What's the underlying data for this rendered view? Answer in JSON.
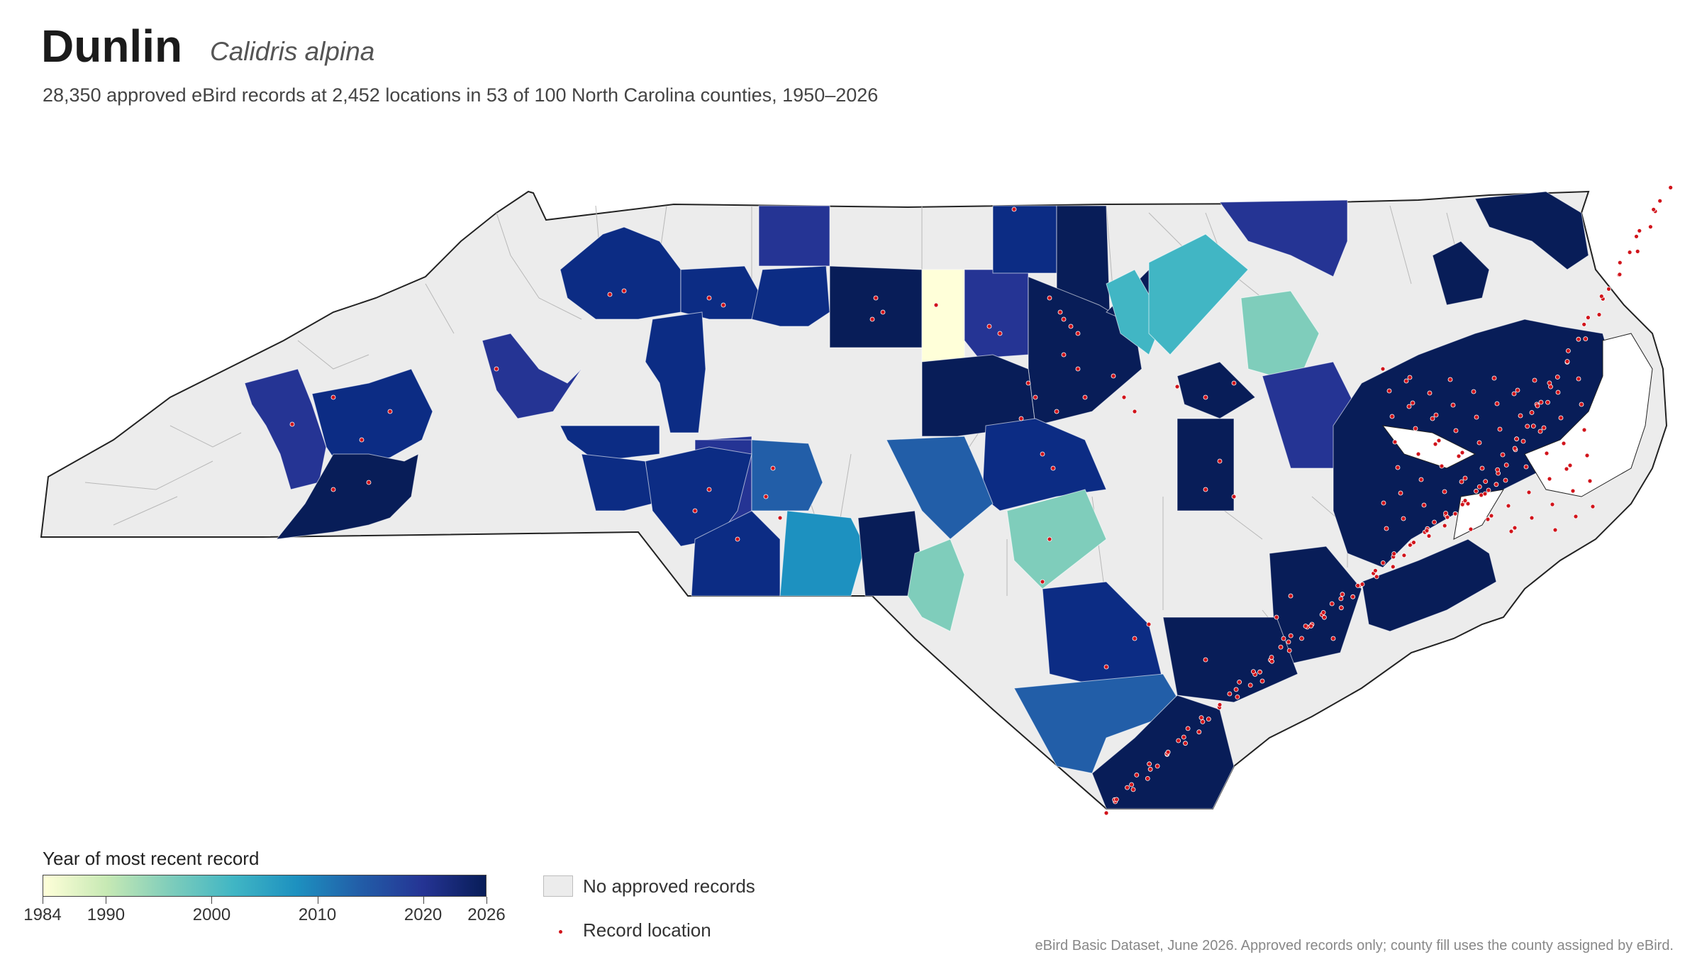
{
  "header": {
    "title": "Dunlin",
    "scientific_name": "Calidris alpina",
    "subtitle": "28,350 approved eBird records at 2,452 locations in 53 of 100 North Carolina counties, 1950–2026"
  },
  "legend": {
    "title": "Year of most recent record",
    "colorbar_min": 1984,
    "colorbar_max": 2026,
    "ticks": [
      "1984",
      "1990",
      "2000",
      "2010",
      "2020",
      "2026"
    ],
    "colors": [
      "#ffffd9",
      "#c7e9b4",
      "#7fcdbb",
      "#41b6c4",
      "#1d91c0",
      "#225ea8",
      "#253494",
      "#081d58"
    ],
    "no_records_label": "No approved records",
    "no_records_color": "#ececec",
    "record_location_label": "Record location",
    "record_color": "#d1141b"
  },
  "source_note": "eBird Basic Dataset, June 2026. Approved records only; county fill uses the county assigned by eBird."
}
